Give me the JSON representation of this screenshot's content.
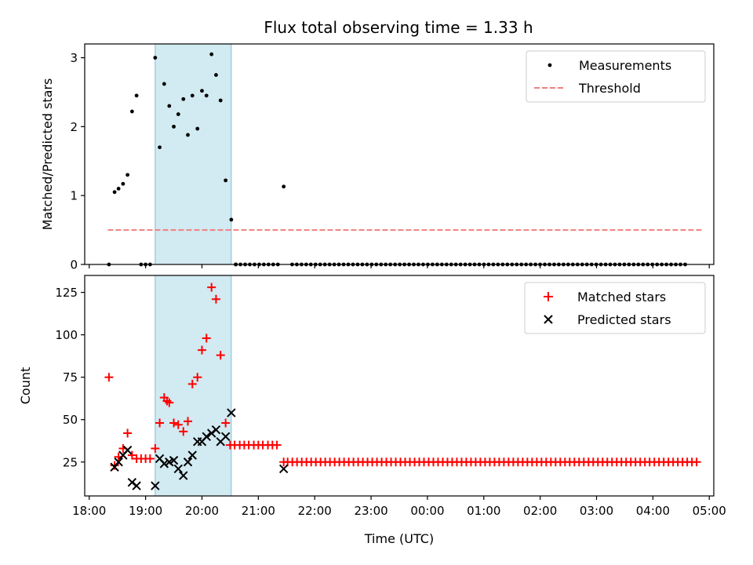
{
  "title": "Flux total observing time = 1.33 h",
  "colors": {
    "measurement": "#000000",
    "threshold": "#f08080",
    "matched": "#ff0000",
    "predicted": "#000000",
    "span": "#add8e6"
  },
  "chart_data": [
    {
      "id": "ratio",
      "type": "scatter",
      "ylabel": "Matched/Predicted stars",
      "xlabel": "",
      "xlim": [
        17.92,
        29.08
      ],
      "ylim": [
        0,
        3.2
      ],
      "yticks": [
        0,
        1,
        2,
        3
      ],
      "ytick_labels": [
        "0",
        "1",
        "2",
        "3"
      ],
      "legend_position": "top-right",
      "legend": [
        {
          "label": "Measurements",
          "marker": "dot"
        },
        {
          "label": "Threshold",
          "marker": "dashed-line"
        }
      ],
      "highlight_span": [
        19.17,
        20.52
      ],
      "threshold": {
        "y": 0.5,
        "x_start": 18.33,
        "x_end": 28.9
      },
      "series": [
        {
          "name": "Measurements",
          "x": [
            18.35,
            18.45,
            18.52,
            18.6,
            18.68,
            18.76,
            18.84,
            18.92,
            19.0,
            19.08,
            19.17,
            19.25,
            19.33,
            19.42,
            19.5,
            19.58,
            19.67,
            19.75,
            19.83,
            19.92,
            20.0,
            20.08,
            20.17,
            20.25,
            20.33,
            20.42,
            20.52,
            20.6,
            21.45
          ],
          "y": [
            0,
            1.05,
            1.1,
            1.17,
            1.3,
            2.22,
            2.45,
            0,
            0,
            0,
            3.0,
            1.7,
            2.62,
            2.3,
            2.0,
            2.18,
            2.4,
            1.88,
            2.45,
            1.97,
            2.52,
            2.45,
            3.05,
            2.75,
            2.38,
            1.22,
            0.65,
            0,
            1.13
          ]
        },
        {
          "name": "Zero measurements",
          "x_range": {
            "start": 20.6,
            "end": 21.35,
            "step": 0.083
          },
          "x_range2": {
            "start": 21.6,
            "end": 28.6,
            "step": 0.083
          },
          "y_const": 0
        }
      ]
    },
    {
      "id": "counts",
      "type": "scatter",
      "ylabel": "Count",
      "xlabel": "Time (UTC)",
      "xlim": [
        17.92,
        29.08
      ],
      "ylim": [
        5,
        135
      ],
      "yticks": [
        25,
        50,
        75,
        100,
        125
      ],
      "ytick_labels": [
        "25",
        "50",
        "75",
        "100",
        "125"
      ],
      "xticks": [
        18,
        19,
        20,
        21,
        22,
        23,
        24,
        25,
        26,
        27,
        28,
        29
      ],
      "xtick_labels": [
        "18:00",
        "19:00",
        "20:00",
        "21:00",
        "22:00",
        "23:00",
        "00:00",
        "01:00",
        "02:00",
        "03:00",
        "04:00",
        "05:00"
      ],
      "legend_position": "top-right",
      "legend": [
        {
          "label": "Matched stars",
          "marker": "plus"
        },
        {
          "label": "Predicted stars",
          "marker": "x"
        }
      ],
      "highlight_span": [
        19.17,
        20.52
      ],
      "series": [
        {
          "name": "Matched stars",
          "x": [
            18.35,
            18.45,
            18.52,
            18.6,
            18.68,
            18.76,
            18.84,
            18.92,
            19.0,
            19.08,
            19.17,
            19.25,
            19.33,
            19.38,
            19.42,
            19.5,
            19.58,
            19.67,
            19.75,
            19.83,
            19.92,
            20.0,
            20.08,
            20.17,
            20.25,
            20.33,
            20.42,
            20.5,
            20.58,
            20.67,
            20.75,
            20.83,
            20.92,
            21.0,
            21.08,
            21.17,
            21.25,
            21.33,
            21.45
          ],
          "y": [
            75,
            23,
            28,
            33,
            42,
            29,
            27,
            27,
            27,
            27,
            33,
            48,
            63,
            61,
            60,
            48,
            47,
            43,
            49,
            71,
            75,
            91,
            98,
            128,
            121,
            88,
            48,
            35,
            35,
            35,
            35,
            35,
            35,
            35,
            35,
            35,
            35,
            35,
            25
          ],
          "x_range": {
            "start": 21.52,
            "end": 28.82,
            "step": 0.0834
          },
          "y_const": 25
        },
        {
          "name": "Predicted stars",
          "x": [
            18.45,
            18.52,
            18.6,
            18.68,
            18.76,
            18.84,
            19.17,
            19.25,
            19.33,
            19.42,
            19.5,
            19.58,
            19.67,
            19.75,
            19.83,
            19.92,
            20.0,
            20.08,
            20.17,
            20.25,
            20.33,
            20.42,
            20.52,
            21.45
          ],
          "y": [
            22,
            25,
            29,
            32,
            13,
            11,
            11,
            27,
            24,
            25,
            26,
            21,
            17,
            25,
            29,
            37,
            37,
            40,
            42,
            44,
            37,
            40,
            54,
            21
          ]
        }
      ]
    }
  ]
}
